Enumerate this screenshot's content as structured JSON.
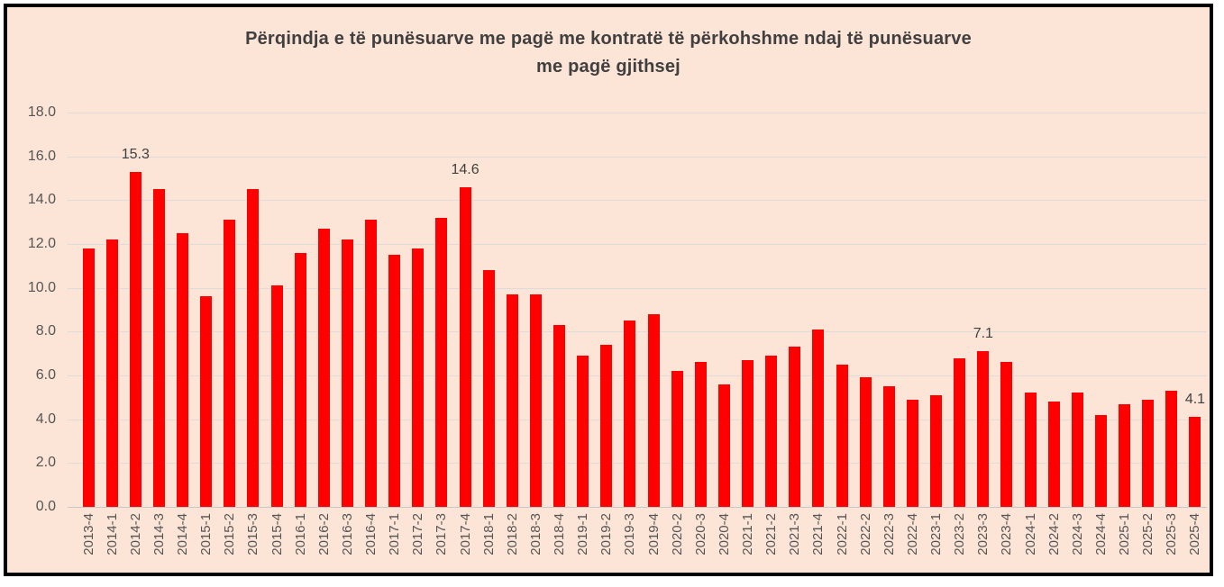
{
  "frame": {
    "background_color": "#FCE4D6",
    "border_color": "#000000",
    "page_background": "#FFFFFF"
  },
  "chart_data": {
    "type": "bar",
    "title_line1": "Përqindja e të punësuarve me pagë me kontratë të përkohshme ndaj të punësuarve",
    "title_line2": "me pagë gjithsej",
    "xlabel": "",
    "ylabel": "",
    "bar_color": "#FF0000",
    "grid": true,
    "legend": false,
    "ylim": [
      0,
      18
    ],
    "ytick_labels": [
      "0.0",
      "2.0",
      "4.0",
      "6.0",
      "8.0",
      "10.0",
      "12.0",
      "14.0",
      "16.0",
      "18.0"
    ],
    "categories": [
      "2013-4",
      "2014-1",
      "2014-2",
      "2014-3",
      "2014-4",
      "2015-1",
      "2015-2",
      "2015-3",
      "2015-4",
      "2016-1",
      "2016-2",
      "2016-3",
      "2016-4",
      "2017-1",
      "2017-2",
      "2017-3",
      "2017-4",
      "2018-1",
      "2018-2",
      "2018-3",
      "2018-4",
      "2019-1",
      "2019-2",
      "2019-3",
      "2019-4",
      "2020-2",
      "2020-3",
      "2020-4",
      "2021-1",
      "2021-2",
      "2021-3",
      "2021-4",
      "2022-1",
      "2022-2",
      "2022-3",
      "2022-4",
      "2023-1",
      "2023-2",
      "2023-3",
      "2023-4",
      "2024-1",
      "2024-2",
      "2024-3",
      "2024-4",
      "2025-1",
      "2025-2",
      "2025-3",
      "2025-4"
    ],
    "values": [
      11.8,
      12.2,
      15.3,
      14.5,
      12.5,
      9.6,
      13.1,
      14.5,
      10.1,
      11.6,
      12.7,
      12.2,
      13.1,
      11.5,
      11.8,
      13.2,
      14.6,
      10.8,
      9.7,
      9.7,
      8.3,
      6.9,
      7.4,
      8.5,
      8.8,
      6.2,
      6.6,
      5.6,
      6.7,
      6.9,
      7.3,
      8.1,
      6.5,
      5.9,
      5.5,
      4.9,
      5.1,
      6.8,
      7.1,
      6.6,
      5.2,
      4.8,
      5.2,
      4.2,
      4.7,
      4.9,
      5.3,
      4.1
    ],
    "data_labels": {
      "2014-2": "15.3",
      "2017-4": "14.6",
      "2023-3": "7.1",
      "2025-4": "4.1"
    }
  }
}
